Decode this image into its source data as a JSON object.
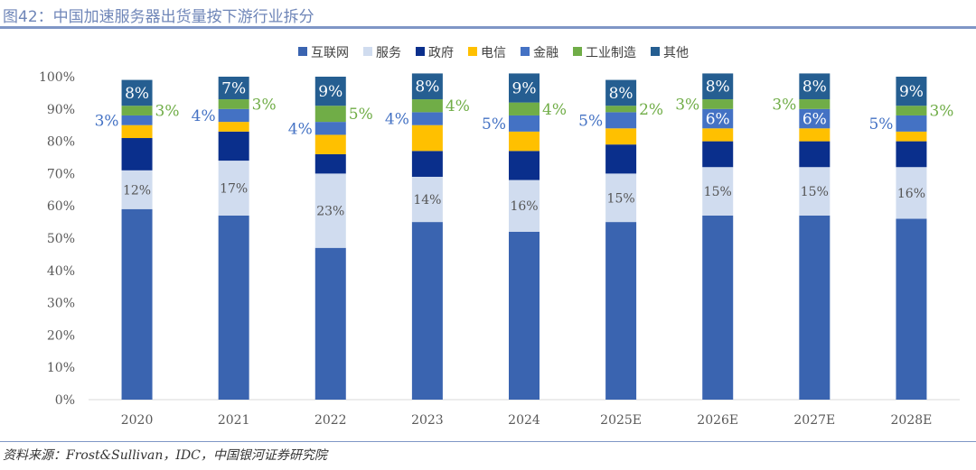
{
  "title": "图42：中国加速服务器出货量按下游行业拆分",
  "source": "资料来源：Frost&Sullivan，IDC，中国银河证券研究院",
  "chart_data": {
    "type": "bar",
    "stacked": true,
    "categories": [
      "2020",
      "2021",
      "2022",
      "2023",
      "2024",
      "2025E",
      "2026E",
      "2027E",
      "2028E"
    ],
    "ylim": [
      0,
      100
    ],
    "yticks": [
      "0%",
      "10%",
      "20%",
      "30%",
      "40%",
      "50%",
      "60%",
      "70%",
      "80%",
      "90%",
      "100%"
    ],
    "grid": false,
    "legend": "top",
    "series": [
      {
        "name": "互联网",
        "color": "#3a64b0",
        "labeled": false,
        "label_color": "#fff",
        "values": [
          59,
          57,
          47,
          55,
          52,
          55,
          57,
          57,
          56
        ]
      },
      {
        "name": "服务",
        "color": "#d0dcef",
        "labeled": true,
        "label_color": "#555",
        "values": [
          12,
          17,
          23,
          14,
          16,
          15,
          15,
          15,
          16
        ]
      },
      {
        "name": "政府",
        "color": "#0a2f8c",
        "labeled": false,
        "label_color": "#fff",
        "values": [
          10,
          9,
          6,
          8,
          9,
          9,
          8,
          8,
          8
        ]
      },
      {
        "name": "电信",
        "color": "#ffc000",
        "labeled": false,
        "label_color": "#fff",
        "values": [
          4,
          3,
          6,
          8,
          6,
          5,
          4,
          4,
          3
        ]
      },
      {
        "name": "金融",
        "color": "#4472c4",
        "labeled": true,
        "label_color": "#fff",
        "values": [
          3,
          4,
          4,
          4,
          5,
          5,
          6,
          6,
          5
        ]
      },
      {
        "name": "工业制造",
        "color": "#70ad47",
        "labeled": true,
        "label_color": "#fff",
        "values": [
          3,
          3,
          5,
          4,
          4,
          2,
          3,
          3,
          3
        ]
      },
      {
        "name": "其他",
        "color": "#255e91",
        "labeled": true,
        "label_color": "#fff",
        "values": [
          8,
          7,
          9,
          8,
          9,
          8,
          8,
          8,
          9
        ]
      }
    ]
  }
}
